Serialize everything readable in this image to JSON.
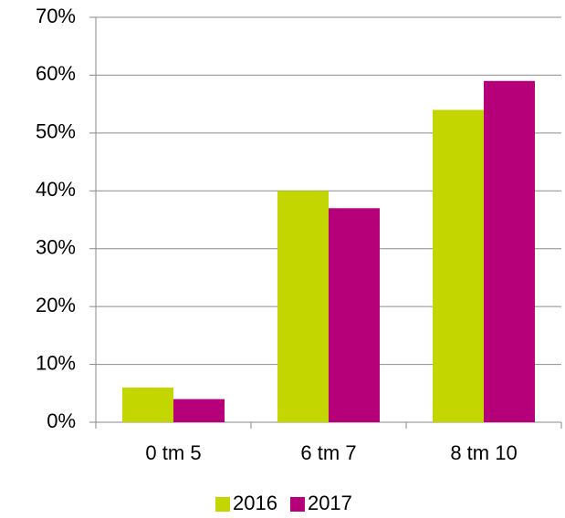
{
  "chart_data": {
    "type": "bar",
    "categories": [
      "0 tm 5",
      "6 tm 7",
      "8 tm 10"
    ],
    "series": [
      {
        "name": "2016",
        "color": "#c4d600",
        "values": [
          6,
          40,
          54
        ]
      },
      {
        "name": "2017",
        "color": "#b5007a",
        "values": [
          4,
          37,
          59
        ]
      }
    ],
    "ylim": [
      0,
      70
    ],
    "yticks": [
      {
        "value": 0,
        "label": "0%"
      },
      {
        "value": 10,
        "label": "10%"
      },
      {
        "value": 20,
        "label": "20%"
      },
      {
        "value": 30,
        "label": "30%"
      },
      {
        "value": 40,
        "label": "40%"
      },
      {
        "value": 50,
        "label": "50%"
      },
      {
        "value": 60,
        "label": "60%"
      },
      {
        "value": 70,
        "label": "70%"
      }
    ],
    "grid": true,
    "legend": "bottom"
  }
}
